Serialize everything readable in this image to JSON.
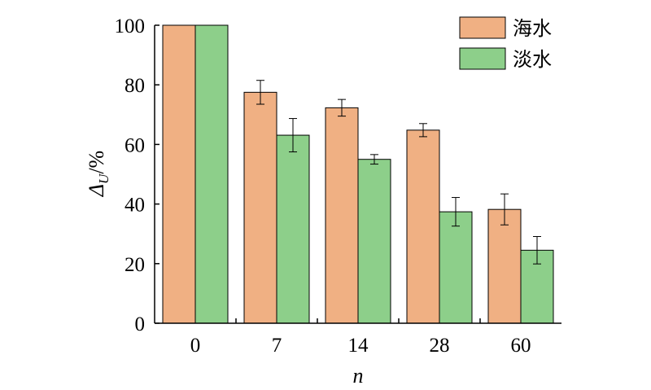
{
  "chart_data": {
    "type": "bar",
    "categories": [
      "0",
      "7",
      "14",
      "28",
      "60"
    ],
    "series": [
      {
        "name": "海水",
        "values": [
          100,
          77.5,
          72.3,
          64.8,
          38.2
        ],
        "errors": [
          0,
          4,
          2.8,
          2.2,
          5.2
        ],
        "color": "#f0b083"
      },
      {
        "name": "淡水",
        "values": [
          100,
          63.1,
          55.0,
          37.4,
          24.5
        ],
        "errors": [
          0,
          5.6,
          1.6,
          4.8,
          4.6
        ],
        "color": "#8dcf8a"
      }
    ],
    "xlabel": "n",
    "ylabel": "Δ",
    "ylabel_sub": "U",
    "ylabel_unit": "/%",
    "ylim": [
      0,
      100
    ],
    "yticks": [
      0,
      20,
      40,
      60,
      80,
      100
    ],
    "legend_position": "top-right",
    "grid": false
  }
}
